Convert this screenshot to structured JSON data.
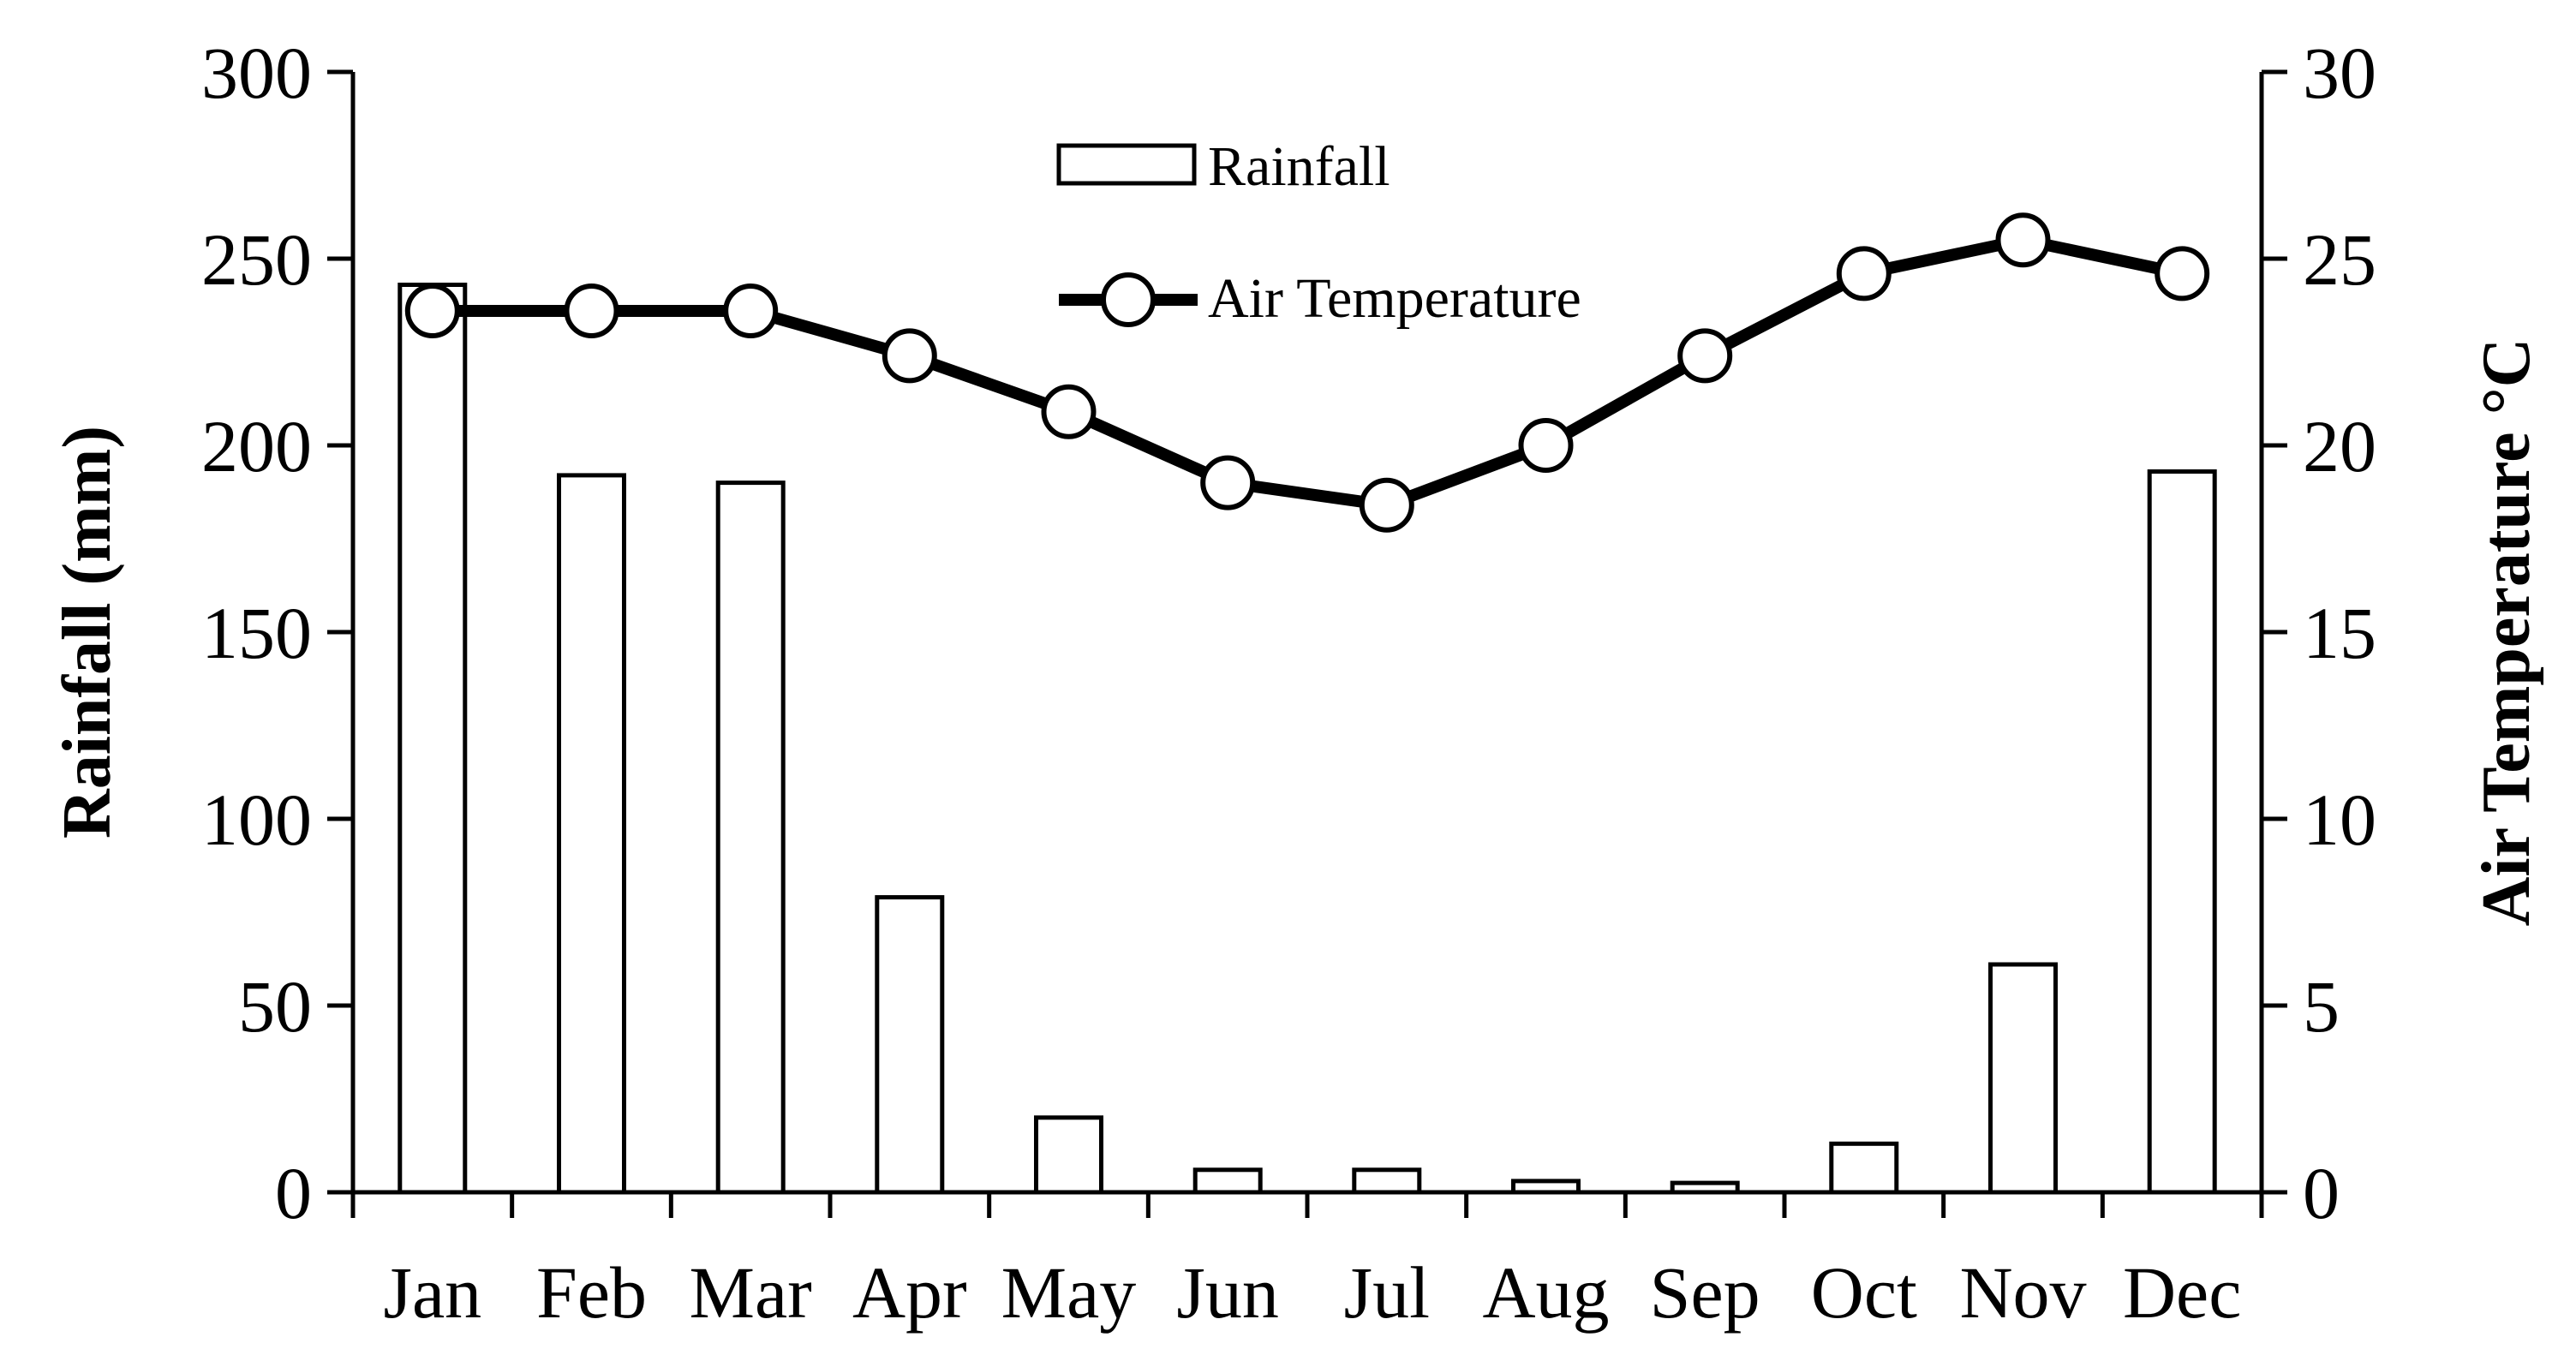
{
  "chart_data": {
    "type": "bar+line",
    "categories": [
      "Jan",
      "Feb",
      "Mar",
      "Apr",
      "May",
      "Jun",
      "Jul",
      "Aug",
      "Sep",
      "Oct",
      "Nov",
      "Dec"
    ],
    "series": [
      {
        "name": "Rainfall",
        "type": "bar",
        "axis": "left",
        "values": [
          243,
          192,
          190,
          79,
          20,
          6,
          6,
          3,
          2.5,
          13,
          61,
          193
        ]
      },
      {
        "name": "Air Temperature",
        "type": "line",
        "axis": "right",
        "marker": "circle",
        "values": [
          23.6,
          23.6,
          23.6,
          22.4,
          20.9,
          19.0,
          18.4,
          20.0,
          22.4,
          24.6,
          25.5,
          24.6
        ]
      }
    ],
    "ylabel": "Rainfall (mm)",
    "y2label": "Air Temperature °C",
    "ylim": [
      0,
      300
    ],
    "y2lim": [
      0,
      30
    ],
    "yticks": [
      "0",
      "50",
      "100",
      "150",
      "200",
      "250",
      "300"
    ],
    "y2ticks": [
      "0",
      "5",
      "10",
      "15",
      "20",
      "25",
      "30"
    ],
    "legend": {
      "position": "top-center",
      "entries": [
        "Rainfall",
        "Air Temperature"
      ]
    },
    "colors": {
      "bar_fill": "#ffffff",
      "bar_stroke": "#000000",
      "line": "#000000",
      "axis": "#000000"
    }
  }
}
